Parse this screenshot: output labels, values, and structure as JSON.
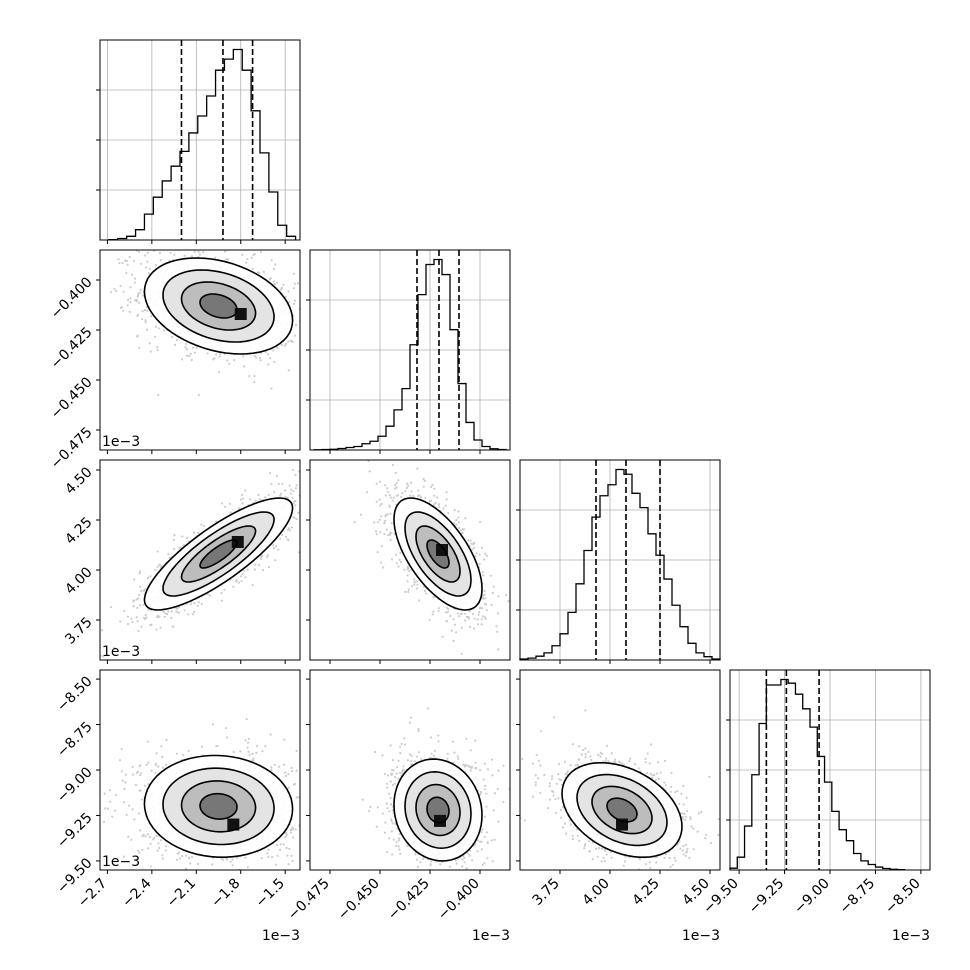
{
  "chart_data": {
    "type": "corner",
    "parameters": [
      {
        "name": "",
        "range": [
          -2.75,
          -1.4
        ],
        "ticks": [
          -2.7,
          -2.4,
          -2.1,
          -1.8,
          -1.5
        ],
        "tick_labels": [
          "−2.7",
          "−2.4",
          "−2.1",
          "−1.8",
          "−1.5"
        ],
        "offset_text": "1e−3",
        "quantiles": [
          -2.2,
          -1.92,
          -1.72
        ],
        "hist_bins": [
          -2.66,
          -2.6,
          -2.54,
          -2.48,
          -2.42,
          -2.36,
          -2.3,
          -2.24,
          -2.18,
          -2.12,
          -2.06,
          -2.0,
          -1.94,
          -1.88,
          -1.82,
          -1.76,
          -1.7,
          -1.64,
          -1.58,
          -1.52,
          -1.46
        ],
        "hist_values": [
          0.5,
          2,
          5,
          14,
          35,
          58,
          80,
          100,
          120,
          145,
          168,
          195,
          230,
          245,
          258,
          230,
          175,
          118,
          65,
          20,
          5
        ]
      },
      {
        "name": "",
        "range": [
          -0.485,
          -0.385
        ],
        "ticks": [
          -0.475,
          -0.45,
          -0.425,
          -0.4
        ],
        "tick_labels": [
          "−0.475",
          "−0.450",
          "−0.425",
          "−0.400"
        ],
        "offset_text": "1e−3",
        "quantiles": [
          -0.4315,
          -0.4205,
          -0.4105
        ],
        "hist_bins": [
          -0.481,
          -0.477,
          -0.473,
          -0.469,
          -0.465,
          -0.461,
          -0.457,
          -0.453,
          -0.449,
          -0.445,
          -0.441,
          -0.437,
          -0.433,
          -0.429,
          -0.425,
          -0.421,
          -0.417,
          -0.413,
          -0.409,
          -0.405,
          -0.401,
          -0.397,
          -0.393,
          -0.389
        ],
        "hist_values": [
          1,
          2,
          3,
          6,
          10,
          14,
          25,
          35,
          55,
          95,
          160,
          245,
          420,
          620,
          740,
          760,
          700,
          480,
          265,
          110,
          40,
          14,
          5,
          2
        ]
      },
      {
        "name": "",
        "range": [
          3.55,
          4.55
        ],
        "ticks": [
          3.75,
          4.0,
          4.25,
          4.5
        ],
        "tick_labels": [
          "3.75",
          "4.00",
          "4.25",
          "4.50"
        ],
        "offset_text": "1e−3",
        "quantiles": [
          3.93,
          4.08,
          4.25
        ],
        "hist_bins": [
          3.57,
          3.61,
          3.65,
          3.69,
          3.73,
          3.77,
          3.81,
          3.85,
          3.89,
          3.93,
          3.97,
          4.01,
          4.05,
          4.09,
          4.13,
          4.17,
          4.21,
          4.25,
          4.29,
          4.33,
          4.37,
          4.41,
          4.45,
          4.49,
          4.53
        ],
        "hist_values": [
          2,
          4,
          8,
          15,
          30,
          55,
          100,
          160,
          230,
          300,
          345,
          368,
          400,
          390,
          350,
          320,
          265,
          220,
          170,
          115,
          70,
          35,
          15,
          7,
          2
        ]
      },
      {
        "name": "",
        "range": [
          -9.55,
          -8.45
        ],
        "ticks": [
          -9.5,
          -9.25,
          -9.0,
          -8.75,
          -8.5
        ],
        "tick_labels": [
          "−9.50",
          "−9.25",
          "−9.00",
          "−8.75",
          "−8.50"
        ],
        "offset_text": "1e−3",
        "quantiles": [
          -9.35,
          -9.24,
          -9.06
        ],
        "hist_bins": [
          -9.53,
          -9.49,
          -9.45,
          -9.41,
          -9.37,
          -9.33,
          -9.29,
          -9.25,
          -9.21,
          -9.17,
          -9.13,
          -9.09,
          -9.05,
          -9.01,
          -8.97,
          -8.93,
          -8.89,
          -8.85,
          -8.81,
          -8.77,
          -8.73,
          -8.69,
          -8.65,
          -8.61
        ],
        "hist_values": [
          5,
          35,
          120,
          260,
          400,
          505,
          505,
          520,
          510,
          480,
          440,
          390,
          310,
          240,
          160,
          110,
          80,
          45,
          25,
          15,
          8,
          4,
          2,
          1
        ]
      }
    ],
    "pairs": [
      {
        "row": 1,
        "col": 0,
        "mean": [
          -1.95,
          -0.413
        ],
        "std": [
          0.25,
          0.012
        ],
        "corr": -0.3,
        "peak": [
          -1.8,
          -0.417
        ]
      },
      {
        "row": 2,
        "col": 0,
        "mean": [
          -1.95,
          4.08
        ],
        "std": [
          0.25,
          0.14
        ],
        "corr": 0.82,
        "peak": [
          -1.82,
          4.14
        ]
      },
      {
        "row": 2,
        "col": 1,
        "mean": [
          -0.421,
          4.08
        ],
        "std": [
          0.011,
          0.14
        ],
        "corr": -0.62,
        "peak": [
          -0.419,
          4.1
        ]
      },
      {
        "row": 3,
        "col": 0,
        "mean": [
          -1.95,
          -9.2
        ],
        "std": [
          0.25,
          0.14
        ],
        "corr": -0.05,
        "peak": [
          -1.85,
          -9.3
        ]
      },
      {
        "row": 3,
        "col": 1,
        "mean": [
          -0.421,
          -9.22
        ],
        "std": [
          0.011,
          0.14
        ],
        "corr": -0.1,
        "peak": [
          -0.42,
          -9.28
        ]
      },
      {
        "row": 3,
        "col": 2,
        "mean": [
          4.06,
          -9.22
        ],
        "std": [
          0.15,
          0.13
        ],
        "corr": -0.35,
        "peak": [
          4.06,
          -9.3
        ]
      }
    ],
    "grid": true,
    "legend": "none"
  }
}
